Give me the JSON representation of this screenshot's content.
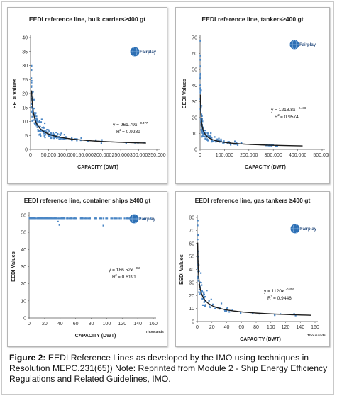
{
  "caption": {
    "label": "Figure 2:",
    "text": "EEDI Reference Lines as developed by the IMO using techniques in Resolution MEPC.231(65)) Note: Reprinted from Module 2 - Ship Energy Efficiency Regulations and Related Guidelines, IMO."
  },
  "colors": {
    "points": "#4a86c5",
    "curve": "#1a1a1a",
    "axis": "#555555",
    "logo_globe": "#2d6fb4"
  },
  "chart_data": [
    {
      "type": "scatter",
      "title": "EEDI reference line, bulk carriers≥400 gt",
      "xlabel": "CAPACITY (DWT)",
      "ylabel": "EEDI Values",
      "xlim": [
        0,
        350000
      ],
      "ylim": [
        0,
        40
      ],
      "xticks": [
        "0",
        "50,000",
        "100,000",
        "150,000",
        "200,000",
        "250,000",
        "300,000",
        "350,000"
      ],
      "yticks": [
        "0",
        "5",
        "10",
        "15",
        "20",
        "25",
        "30",
        "35",
        "40"
      ],
      "x_unit": "",
      "logo": "Fairplay",
      "equation": "y = 961.79x",
      "equation_exp": "-0.477",
      "r2_label": "R",
      "r2_value": "= 0.9289",
      "fit": {
        "a": 961.79,
        "b": -0.477,
        "xmin": 3000,
        "xmax": 320000
      },
      "clusters": [
        {
          "xmin": 2000,
          "xmax": 12000,
          "n": 38,
          "spread": 0.22
        },
        {
          "xmin": 12000,
          "xmax": 45000,
          "n": 60,
          "spread": 0.16
        },
        {
          "xmin": 45000,
          "xmax": 90000,
          "n": 55,
          "spread": 0.12
        },
        {
          "xmin": 90000,
          "xmax": 210000,
          "n": 22,
          "spread": 0.1
        },
        {
          "xmin": 210000,
          "xmax": 320000,
          "n": 4,
          "spread": 0.08
        }
      ]
    },
    {
      "type": "scatter",
      "title": "EEDI reference line, tankers≥400 gt",
      "xlabel": "CAPACITY (DWT)",
      "ylabel": "EEDI Values",
      "xlim": [
        0,
        500000
      ],
      "ylim": [
        0,
        70
      ],
      "xticks": [
        "0",
        "100,000",
        "200,000",
        "300,000",
        "400,000",
        "500,000"
      ],
      "yticks": [
        "0",
        "10",
        "20",
        "30",
        "40",
        "50",
        "60",
        "70"
      ],
      "x_unit": "",
      "logo": "Fairplay",
      "equation": "y = 1218.8x",
      "equation_exp": "-0.488",
      "r2_label": "R",
      "r2_value": "= 0.9574",
      "fit": {
        "a": 1218.8,
        "b": -0.488,
        "xmin": 1500,
        "xmax": 420000
      },
      "clusters": [
        {
          "xmin": 800,
          "xmax": 8000,
          "n": 45,
          "spread": 0.3
        },
        {
          "xmin": 8000,
          "xmax": 60000,
          "n": 55,
          "spread": 0.2
        },
        {
          "xmin": 60000,
          "xmax": 170000,
          "n": 35,
          "spread": 0.15
        },
        {
          "xmin": 270000,
          "xmax": 320000,
          "n": 14,
          "spread": 0.1
        }
      ]
    },
    {
      "type": "scatter",
      "title": "EEDI reference line, container ships ≥400 gt",
      "xlabel": "CAPACITY (DWT)",
      "ylabel": "EEDI Values",
      "xlim": [
        0,
        160
      ],
      "ylim": [
        0,
        60
      ],
      "xticks": [
        "0",
        "20",
        "40",
        "60",
        "80",
        "100",
        "120",
        "140",
        "160"
      ],
      "yticks": [
        "0",
        "10",
        "20",
        "30",
        "40",
        "50",
        "60"
      ],
      "x_unit": "Thousands",
      "logo": "Fairplay",
      "equation": "y = 186.52x",
      "equation_exp": "-0.2",
      "r2_label": "R",
      "r2_value": "= 0.6191",
      "fit": {
        "a": 186.52,
        "b": -0.2,
        "xmin": 0.5,
        "xmax": 155
      },
      "clusters": [
        {
          "xmin": 0.5,
          "xmax": 10,
          "n": 60,
          "spread": 0.28
        },
        {
          "xmin": 10,
          "xmax": 40,
          "n": 75,
          "spread": 0.22
        },
        {
          "xmin": 40,
          "xmax": 80,
          "n": 45,
          "spread": 0.18
        },
        {
          "xmin": 80,
          "xmax": 130,
          "n": 25,
          "spread": 0.15
        },
        {
          "xmin": 130,
          "xmax": 157,
          "n": 4,
          "spread": 0.15
        }
      ]
    },
    {
      "type": "scatter",
      "title": "EEDI reference line, gas tankers ≥400 gt",
      "xlabel": "CAPACITY (DWT)",
      "ylabel": "EEDI Values",
      "xlim": [
        0,
        160
      ],
      "ylim": [
        0,
        80
      ],
      "xticks": [
        "0",
        "20",
        "40",
        "60",
        "80",
        "100",
        "120",
        "140",
        "160"
      ],
      "yticks": [
        "0",
        "10",
        "20",
        "30",
        "40",
        "50",
        "60",
        "70",
        "80"
      ],
      "x_unit": "Thousands",
      "logo": "Fairplay",
      "equation": "y = 1120x",
      "equation_exp": "-0.456",
      "r2_label": "R",
      "r2_value": "= 0.9446",
      "fit": {
        "a": 1120,
        "b": -0.456,
        "xmin": 0.6,
        "xmax": 155
      },
      "fit_x_scale": 1000,
      "clusters": [
        {
          "xmin": 0.5,
          "xmax": 5,
          "n": 30,
          "spread": 0.3
        },
        {
          "xmin": 5,
          "xmax": 25,
          "n": 30,
          "spread": 0.2
        },
        {
          "xmin": 25,
          "xmax": 60,
          "n": 14,
          "spread": 0.15
        },
        {
          "xmin": 75,
          "xmax": 135,
          "n": 6,
          "spread": 0.12
        }
      ]
    }
  ]
}
